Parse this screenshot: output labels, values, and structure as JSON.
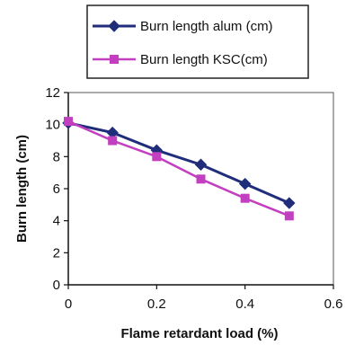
{
  "chart_data": {
    "type": "line",
    "xlabel": "Flame retardant load (%)",
    "ylabel": "Burn length (cm)",
    "xlim": [
      0,
      0.6
    ],
    "ylim": [
      0,
      12
    ],
    "x_ticks": [
      "0",
      "0.2",
      "0.4",
      "0.6"
    ],
    "y_ticks": [
      "0",
      "2",
      "4",
      "6",
      "8",
      "10",
      "12"
    ],
    "grid": false,
    "legend_position": "top",
    "series": [
      {
        "name": "Burn length alum (cm)",
        "color": "#1f2d7a",
        "marker": "diamond",
        "x": [
          0,
          0.1,
          0.2,
          0.3,
          0.4,
          0.5
        ],
        "y": [
          10.1,
          9.5,
          8.4,
          7.5,
          6.3,
          5.1
        ]
      },
      {
        "name": "Burn length KSC(cm)",
        "color": "#c23fc0",
        "marker": "square",
        "x": [
          0,
          0.1,
          0.2,
          0.3,
          0.4,
          0.5
        ],
        "y": [
          10.2,
          9.0,
          8.0,
          6.6,
          5.4,
          4.3
        ]
      }
    ]
  }
}
